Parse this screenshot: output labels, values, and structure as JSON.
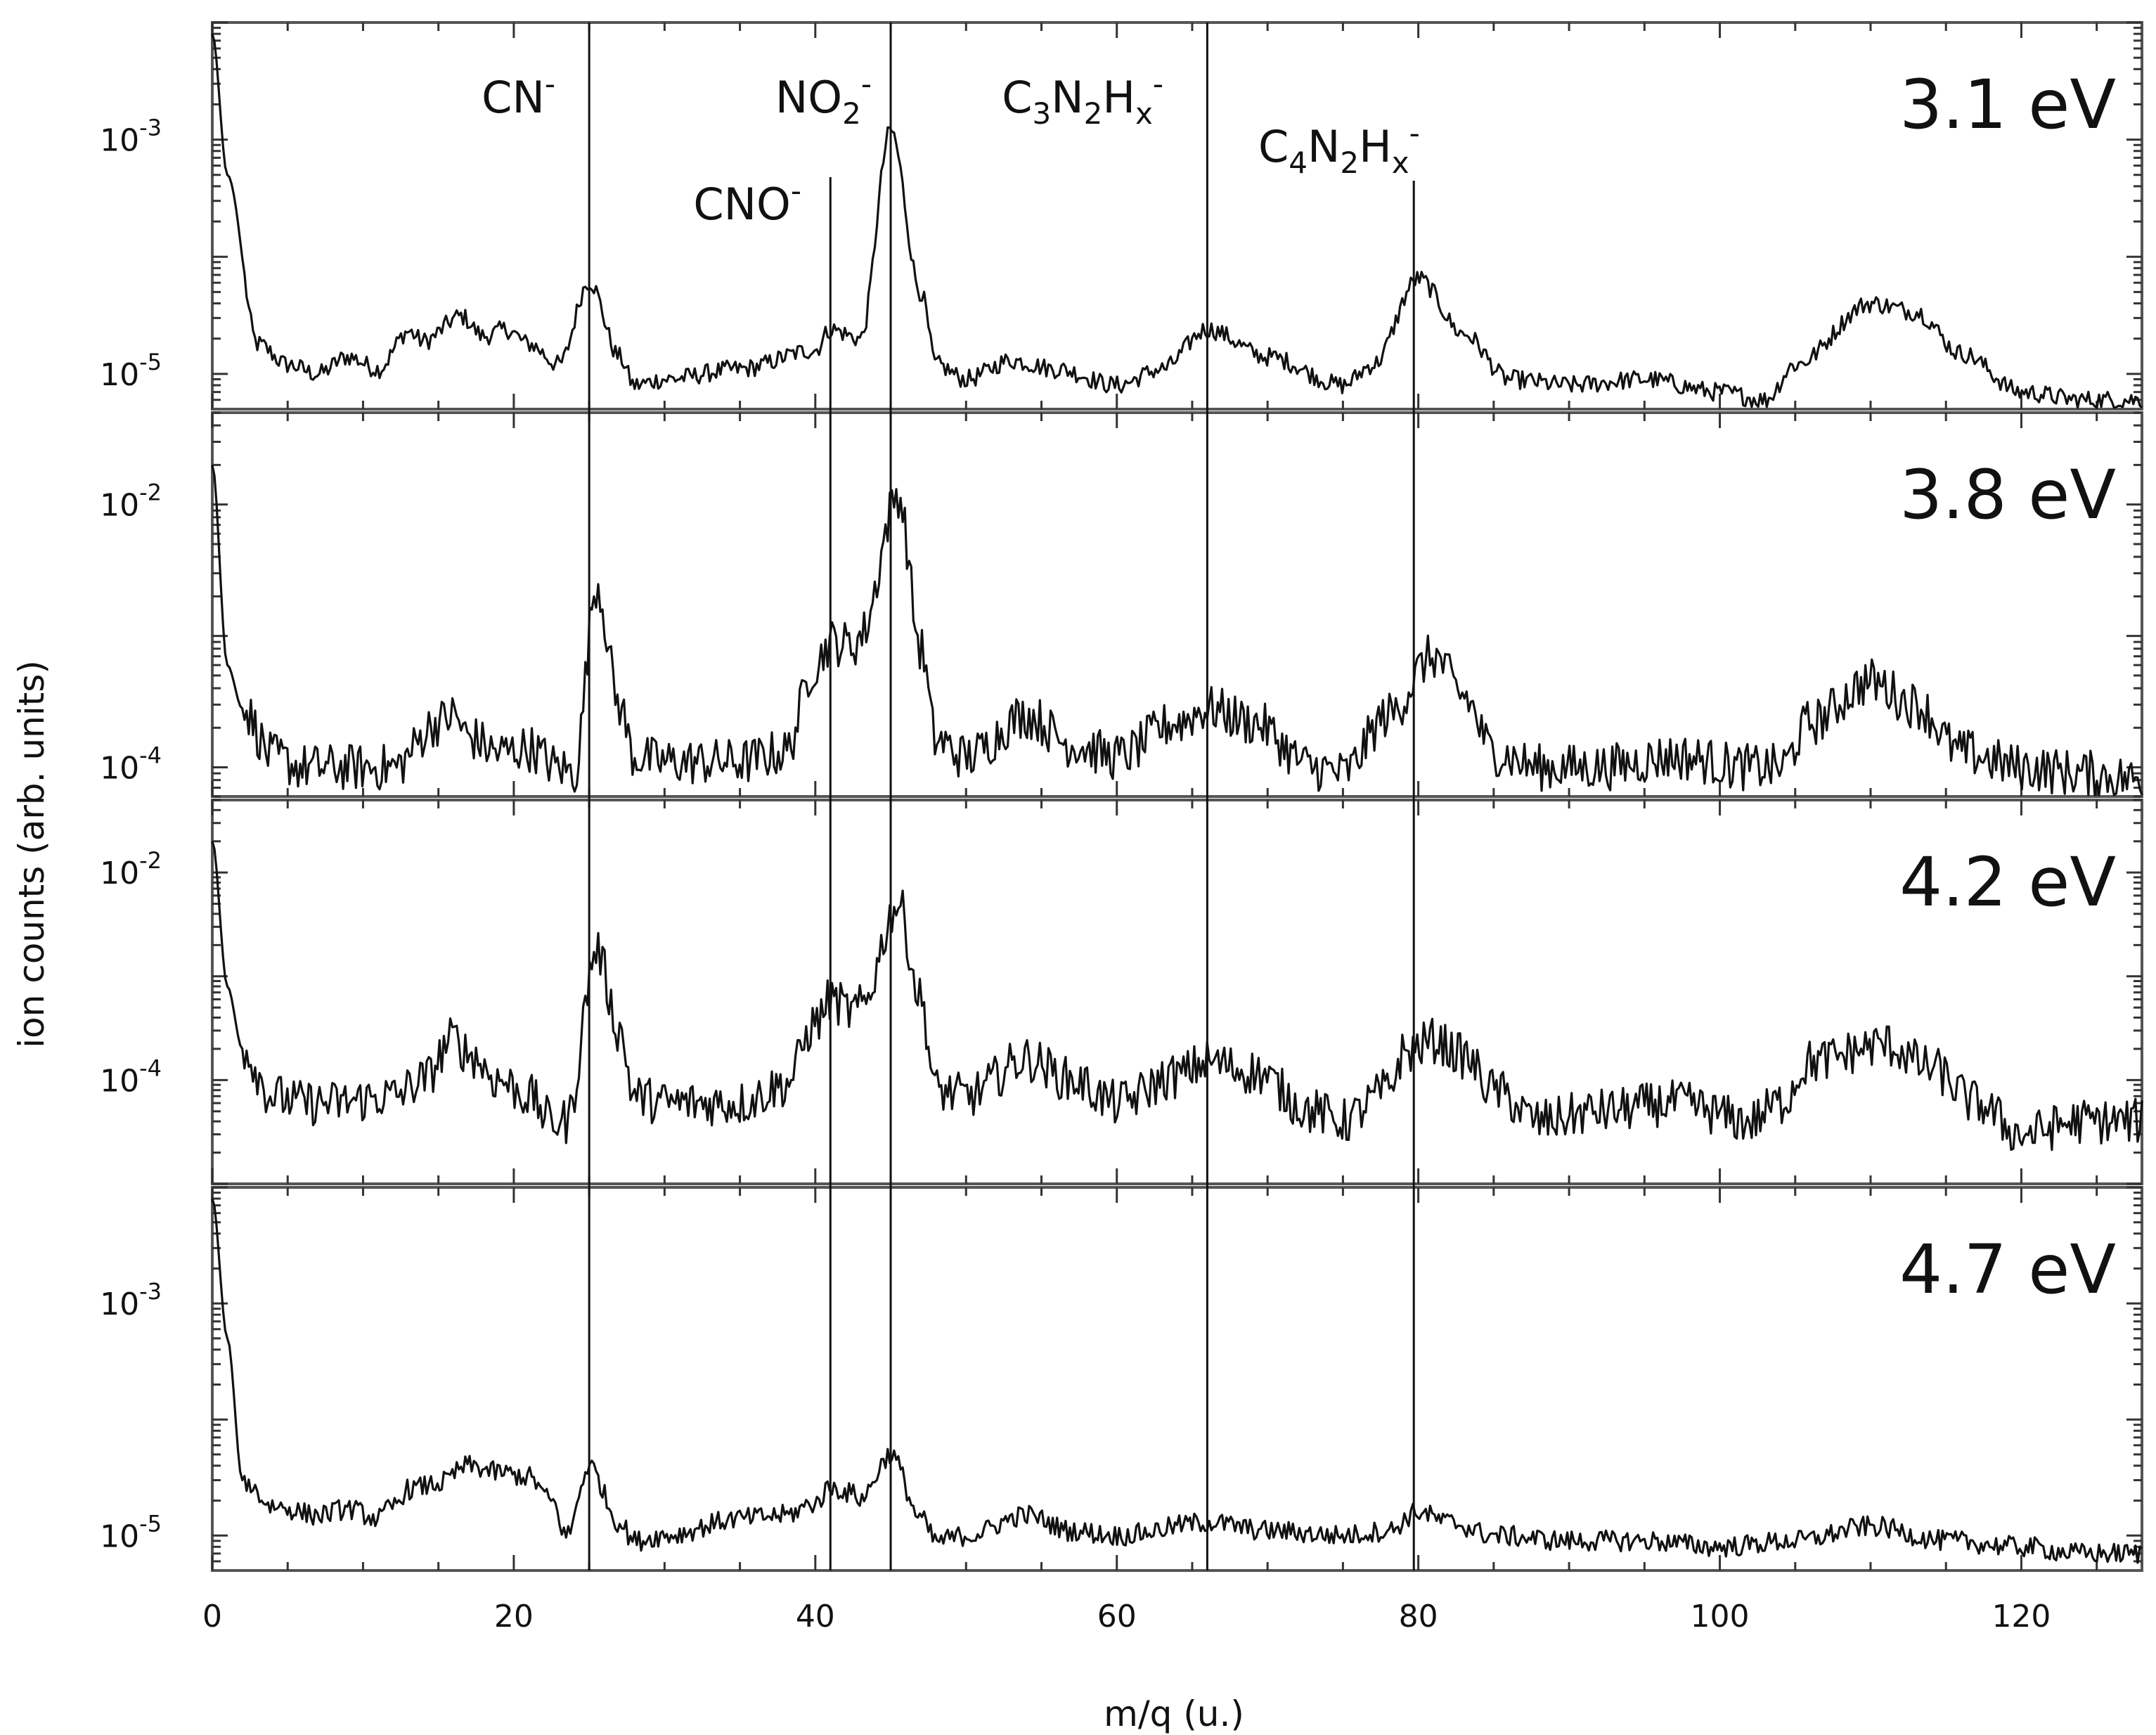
{
  "chart_data": {
    "type": "line",
    "xlabel": "m/q (u.)",
    "ylabel": "ion counts (arb. units)",
    "xlim": [
      0,
      128
    ],
    "x_ticks": [
      0,
      20,
      40,
      60,
      80,
      100,
      120
    ],
    "x_tick_labels": [
      "0",
      "20",
      "40",
      "60",
      "80",
      "100",
      "120"
    ],
    "y_scale": "log",
    "grid": false,
    "legend": "none",
    "line_color": "#111111",
    "markers": [
      {
        "id": "cn",
        "label": "CN",
        "sup": "-",
        "x": 25
      },
      {
        "id": "cno",
        "label": "CNO",
        "sup": "-",
        "x": 41
      },
      {
        "id": "no2",
        "label": "NO",
        "sub": "2",
        "sup": "-",
        "x": 45
      },
      {
        "id": "c3n2hx",
        "parts": [
          [
            "C",
            ""
          ],
          [
            "3",
            "sub"
          ],
          [
            "N",
            ""
          ],
          [
            "2",
            "sub"
          ],
          [
            "H",
            ""
          ],
          [
            "x",
            "sub"
          ],
          [
            "-",
            "sup"
          ]
        ],
        "x": 66
      },
      {
        "id": "c4n2hx",
        "parts": [
          [
            "C",
            ""
          ],
          [
            "4",
            "sub"
          ],
          [
            "N",
            ""
          ],
          [
            "2",
            "sub"
          ],
          [
            "H",
            ""
          ],
          [
            "x",
            "sub"
          ],
          [
            "-",
            "sup"
          ]
        ],
        "x": 79.7
      }
    ],
    "panels": [
      {
        "energy_label": "3.1 eV",
        "ylim": [
          5e-06,
          0.01
        ],
        "y_ticks": [
          {
            "value": 0.001,
            "exp": "-3"
          },
          {
            "value": 1e-05,
            "exp": "-5"
          }
        ],
        "baseline": 1.2e-05,
        "noise": 0.08,
        "peaks": [
          [
            0,
            0.008,
            0.45
          ],
          [
            0.8,
            0.0012,
            0.7
          ],
          [
            9,
            4e-06,
            1.2
          ],
          [
            13,
            1.8e-05,
            0.9
          ],
          [
            16.5,
            3e-05,
            1.3
          ],
          [
            19.5,
            2.2e-05,
            1.2
          ],
          [
            25,
            6e-05,
            0.9
          ],
          [
            35,
            3e-06,
            3
          ],
          [
            41,
            2.2e-05,
            1.2
          ],
          [
            45,
            0.0013,
            1.4
          ],
          [
            53,
            8e-06,
            2
          ],
          [
            66,
            2.2e-05,
            2.4
          ],
          [
            80,
            6e-05,
            2.2
          ],
          [
            95,
            3e-06,
            3
          ],
          [
            110,
            3.8e-05,
            3.3
          ]
        ],
        "spline_x": [
          0,
          1,
          3,
          5,
          7,
          9,
          11,
          13,
          14,
          16.5,
          18,
          19.5,
          21,
          23,
          25,
          27,
          28,
          30,
          35,
          40,
          41,
          43,
          45,
          47,
          48,
          50,
          53,
          56,
          60,
          63,
          66,
          70,
          75,
          77,
          80,
          83,
          86,
          90,
          95,
          100,
          103,
          105,
          110,
          113,
          116,
          120,
          124,
          128
        ],
        "spline_y": [
          0.008,
          0.0005,
          1.8e-05,
          1.2e-05,
          1e-05,
          1.4e-05,
          1.1e-05,
          2.3e-05,
          1.9e-05,
          3.1e-05,
          2.1e-05,
          2.4e-05,
          1.8e-05,
          1.2e-05,
          6.2e-05,
          1.4e-05,
          8e-06,
          9e-06,
          1.1e-05,
          1.6e-05,
          2.4e-05,
          2e-05,
          0.0012,
          5e-05,
          1.2e-05,
          9e-06,
          1.3e-05,
          1.1e-05,
          8e-06,
          1.1e-05,
          2.4e-05,
          1.4e-05,
          8e-06,
          1.2e-05,
          6.5e-05,
          2.2e-05,
          9e-06,
          8e-06,
          9e-06,
          7e-06,
          6e-06,
          1.2e-05,
          4e-05,
          3.4e-05,
          1.5e-05,
          7e-06,
          6e-06,
          6e-06
        ]
      },
      {
        "energy_label": "3.8 eV",
        "ylim": [
          6e-05,
          0.05
        ],
        "y_ticks": [
          {
            "value": 0.01,
            "exp": "-2"
          },
          {
            "value": 0.0001,
            "exp": "-4"
          }
        ],
        "noise": 0.18,
        "spline_x": [
          0,
          1,
          2,
          4,
          6,
          8,
          12,
          15,
          16,
          17,
          19,
          21,
          23,
          24,
          25.5,
          27,
          28,
          30,
          35,
          38,
          40,
          41,
          42.5,
          43,
          45.5,
          47,
          48,
          50,
          54,
          57,
          60,
          64,
          66,
          69,
          73,
          75,
          78,
          81,
          83,
          85,
          88,
          92,
          97,
          102,
          104,
          106,
          110,
          113,
          116,
          120,
          124,
          128
        ],
        "spline_y": [
          0.02,
          0.0006,
          0.00028,
          0.00012,
          0.0001,
          0.0001,
          0.0001,
          0.00022,
          0.00025,
          0.00017,
          0.00013,
          0.00014,
          0.0001,
          9e-05,
          0.0025,
          0.0003,
          0.00012,
          0.00011,
          0.00011,
          0.00013,
          0.0006,
          0.0009,
          0.00085,
          0.001,
          0.012,
          0.0008,
          0.00016,
          0.00012,
          0.00025,
          0.00015,
          0.00012,
          0.00022,
          0.00028,
          0.00022,
          0.0001,
          9e-05,
          0.00025,
          0.0007,
          0.00035,
          0.00013,
          0.0001,
          0.0001,
          0.00012,
          0.0001,
          0.0001,
          0.00022,
          0.00045,
          0.0003,
          0.00013,
          0.0001,
          9e-05,
          8e-05
        ]
      },
      {
        "energy_label": "4.2 eV",
        "ylim": [
          1e-05,
          0.05
        ],
        "y_ticks": [
          {
            "value": 0.01,
            "exp": "-2"
          },
          {
            "value": 0.0001,
            "exp": "-4"
          }
        ],
        "noise": 0.22,
        "spline_x": [
          0,
          1,
          2,
          4,
          6,
          8,
          12,
          14,
          16,
          17,
          19,
          21,
          22.5,
          23.5,
          25.5,
          27,
          28,
          30,
          35,
          38,
          40,
          41,
          42.5,
          43,
          45.5,
          47,
          48,
          50,
          54,
          57,
          60,
          64,
          66,
          69,
          73,
          75,
          78,
          79,
          81,
          83,
          85,
          88,
          92,
          97,
          102,
          104,
          106,
          111,
          114,
          117,
          120,
          124,
          128
        ],
        "spline_y": [
          0.02,
          0.0008,
          0.0002,
          7e-05,
          6e-05,
          6e-05,
          7e-05,
          0.0001,
          0.00025,
          0.00018,
          0.0001,
          7e-05,
          4e-05,
          4e-05,
          0.0018,
          0.0003,
          7e-05,
          6e-05,
          6e-05,
          9e-05,
          0.00035,
          0.0006,
          0.00045,
          0.0005,
          0.005,
          0.0006,
          8e-05,
          7e-05,
          0.00016,
          0.0001,
          6e-05,
          0.00011,
          0.00015,
          0.00012,
          5e-05,
          4e-05,
          8e-05,
          0.00018,
          0.00024,
          0.00017,
          8e-05,
          4e-05,
          5e-05,
          6e-05,
          4e-05,
          6e-05,
          0.00015,
          0.00022,
          0.00013,
          6e-05,
          3e-05,
          4e-05,
          4e-05
        ]
      },
      {
        "energy_label": "4.7 eV",
        "ylim": [
          5e-06,
          0.01
        ],
        "y_ticks": [
          {
            "value": 0.001,
            "exp": "-3"
          },
          {
            "value": 1e-05,
            "exp": "-5"
          }
        ],
        "noise": 0.09,
        "spline_x": [
          0,
          1,
          2,
          4,
          7,
          9,
          11,
          12,
          13,
          15,
          17,
          19,
          21,
          22.5,
          23.5,
          25,
          27,
          28,
          30,
          35,
          38,
          40,
          41,
          42.5,
          43,
          45,
          47,
          48,
          50,
          54,
          57,
          60,
          66,
          70,
          75,
          78,
          80,
          82,
          85,
          90,
          95,
          100,
          105,
          110,
          115,
          120,
          124,
          128
        ],
        "spline_y": [
          0.008,
          0.0005,
          3e-05,
          1.8e-05,
          1.5e-05,
          1.7e-05,
          1.4e-05,
          1.8e-05,
          2.5e-05,
          2.8e-05,
          4e-05,
          3.5e-05,
          3.2e-05,
          2e-05,
          1e-05,
          4e-05,
          1.3e-05,
          9e-06,
          1e-05,
          1.4e-05,
          1.5e-05,
          1.9e-05,
          2.6e-05,
          2.3e-05,
          2.1e-05,
          5e-05,
          1.4e-05,
          9e-06,
          1e-05,
          1.5e-05,
          1.1e-05,
          1e-05,
          1.3e-05,
          1.1e-05,
          1e-05,
          1.1e-05,
          1.6e-05,
          1.3e-05,
          1e-05,
          9e-06,
          9e-06,
          8e-06,
          9e-06,
          1.2e-05,
          9e-06,
          8e-06,
          7e-06,
          7e-06
        ]
      }
    ]
  }
}
